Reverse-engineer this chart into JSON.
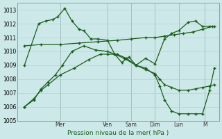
{
  "bg_color": "#cce8e8",
  "line_color": "#1a5c1a",
  "grid_color": "#b0cccc",
  "xlabel": "Pression niveau de la mer( hPa )",
  "ylim": [
    1005,
    1013.5
  ],
  "yticks": [
    1005,
    1006,
    1007,
    1008,
    1009,
    1010,
    1011,
    1012,
    1013
  ],
  "xlim": [
    0,
    8.5
  ],
  "day_labels": [
    "Mer",
    "Ven",
    "Sam",
    "Dim",
    "Lun",
    "M"
  ],
  "day_ticks": [
    1.8,
    3.8,
    4.8,
    5.8,
    6.8,
    7.9
  ],
  "day_vlines": [
    1.8,
    3.8,
    4.8,
    5.8,
    6.8,
    7.9
  ],
  "s1_x": [
    0.3,
    0.9,
    1.2,
    1.5,
    1.7,
    2.0,
    2.3,
    2.6,
    2.8,
    3.1,
    3.4,
    3.8,
    4.1,
    4.4,
    4.7,
    5.0,
    5.4,
    5.8,
    6.2,
    6.5,
    6.8,
    7.2,
    7.5,
    7.8,
    8.1,
    8.3
  ],
  "s1_y": [
    1009.0,
    1012.0,
    1012.2,
    1012.3,
    1012.5,
    1013.1,
    1012.2,
    1011.6,
    1011.5,
    1010.9,
    1010.9,
    1010.8,
    1009.8,
    1009.2,
    1009.6,
    1009.0,
    1009.5,
    1009.1,
    1010.9,
    1011.3,
    1011.5,
    1012.1,
    1012.2,
    1011.8,
    1011.8,
    1011.8
  ],
  "s2_x": [
    0.3,
    1.0,
    1.8,
    2.6,
    3.4,
    4.2,
    4.8,
    5.4,
    5.8,
    6.2,
    6.6,
    7.0,
    7.4,
    7.8,
    8.2
  ],
  "s2_y": [
    1010.4,
    1010.5,
    1010.5,
    1010.6,
    1010.7,
    1010.8,
    1010.9,
    1011.0,
    1011.0,
    1011.1,
    1011.2,
    1011.3,
    1011.4,
    1011.6,
    1011.8
  ],
  "s3_x": [
    0.3,
    0.7,
    1.0,
    1.3,
    1.8,
    2.4,
    3.0,
    3.5,
    3.8,
    4.2,
    4.6,
    5.0,
    5.4,
    5.8,
    6.0,
    6.2,
    6.5,
    6.8,
    7.2,
    7.5,
    7.8,
    8.1,
    8.3
  ],
  "s3_y": [
    1006.0,
    1006.6,
    1007.2,
    1007.6,
    1008.3,
    1008.8,
    1009.4,
    1009.8,
    1009.8,
    1009.8,
    1009.5,
    1009.0,
    1008.7,
    1008.4,
    1008.0,
    1007.6,
    1007.4,
    1007.2,
    1007.2,
    1007.3,
    1007.4,
    1007.5,
    1007.6
  ],
  "s4_x": [
    0.3,
    0.7,
    1.0,
    1.3,
    1.6,
    1.9,
    2.3,
    2.8,
    3.3,
    3.8,
    4.1,
    4.5,
    5.0,
    5.4,
    5.8,
    6.0,
    6.2,
    6.5,
    6.8,
    7.2,
    7.5,
    7.8,
    8.1,
    8.3
  ],
  "s4_y": [
    1006.0,
    1006.5,
    1007.3,
    1007.8,
    1008.3,
    1009.0,
    1010.0,
    1010.4,
    1010.1,
    1010.0,
    1009.8,
    1009.5,
    1009.0,
    1008.8,
    1008.3,
    1007.5,
    1006.5,
    1005.7,
    1005.5,
    1005.5,
    1005.5,
    1005.5,
    1007.2,
    1008.8
  ]
}
